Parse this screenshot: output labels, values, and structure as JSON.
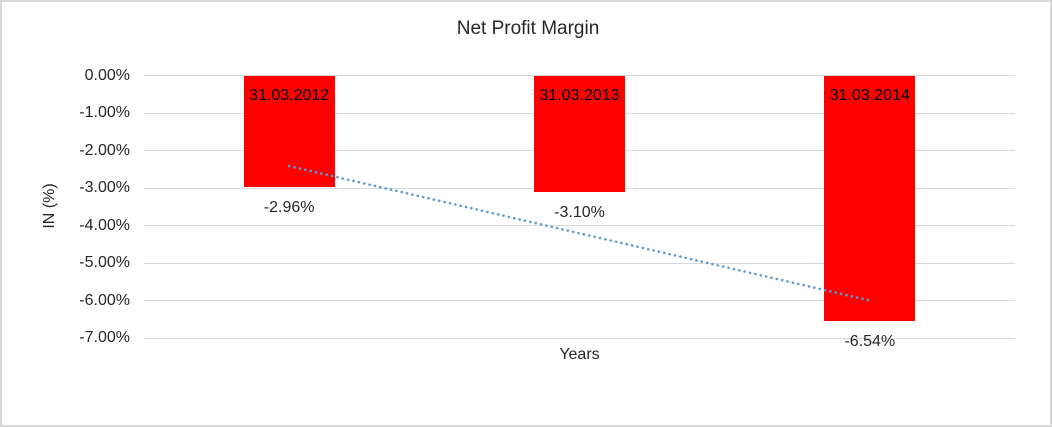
{
  "chart_data": {
    "type": "bar",
    "title": "Net Profit Margin",
    "xlabel": "Years",
    "ylabel": "IN (%)",
    "categories": [
      "31.03.2012",
      "31.03.2013",
      "31.03.2014"
    ],
    "values": [
      -2.96,
      -3.1,
      -6.54
    ],
    "value_labels": [
      "-2.96%",
      "-3.10%",
      "-6.54%"
    ],
    "ytick_labels": [
      "0.00%",
      "-1.00%",
      "-2.00%",
      "-3.00%",
      "-4.00%",
      "-5.00%",
      "-6.00%",
      "-7.00%"
    ],
    "ytick_values": [
      0,
      -1,
      -2,
      -3,
      -4,
      -5,
      -6,
      -7
    ],
    "ylim": [
      -7,
      0
    ],
    "grid": true,
    "legend": false,
    "bar_color": "#ff0000",
    "gridline_color": "#d9d9d9",
    "trendline": {
      "style": "dotted",
      "color": "#5b9bd5",
      "start_value": -2.41,
      "end_value": -5.99
    }
  }
}
